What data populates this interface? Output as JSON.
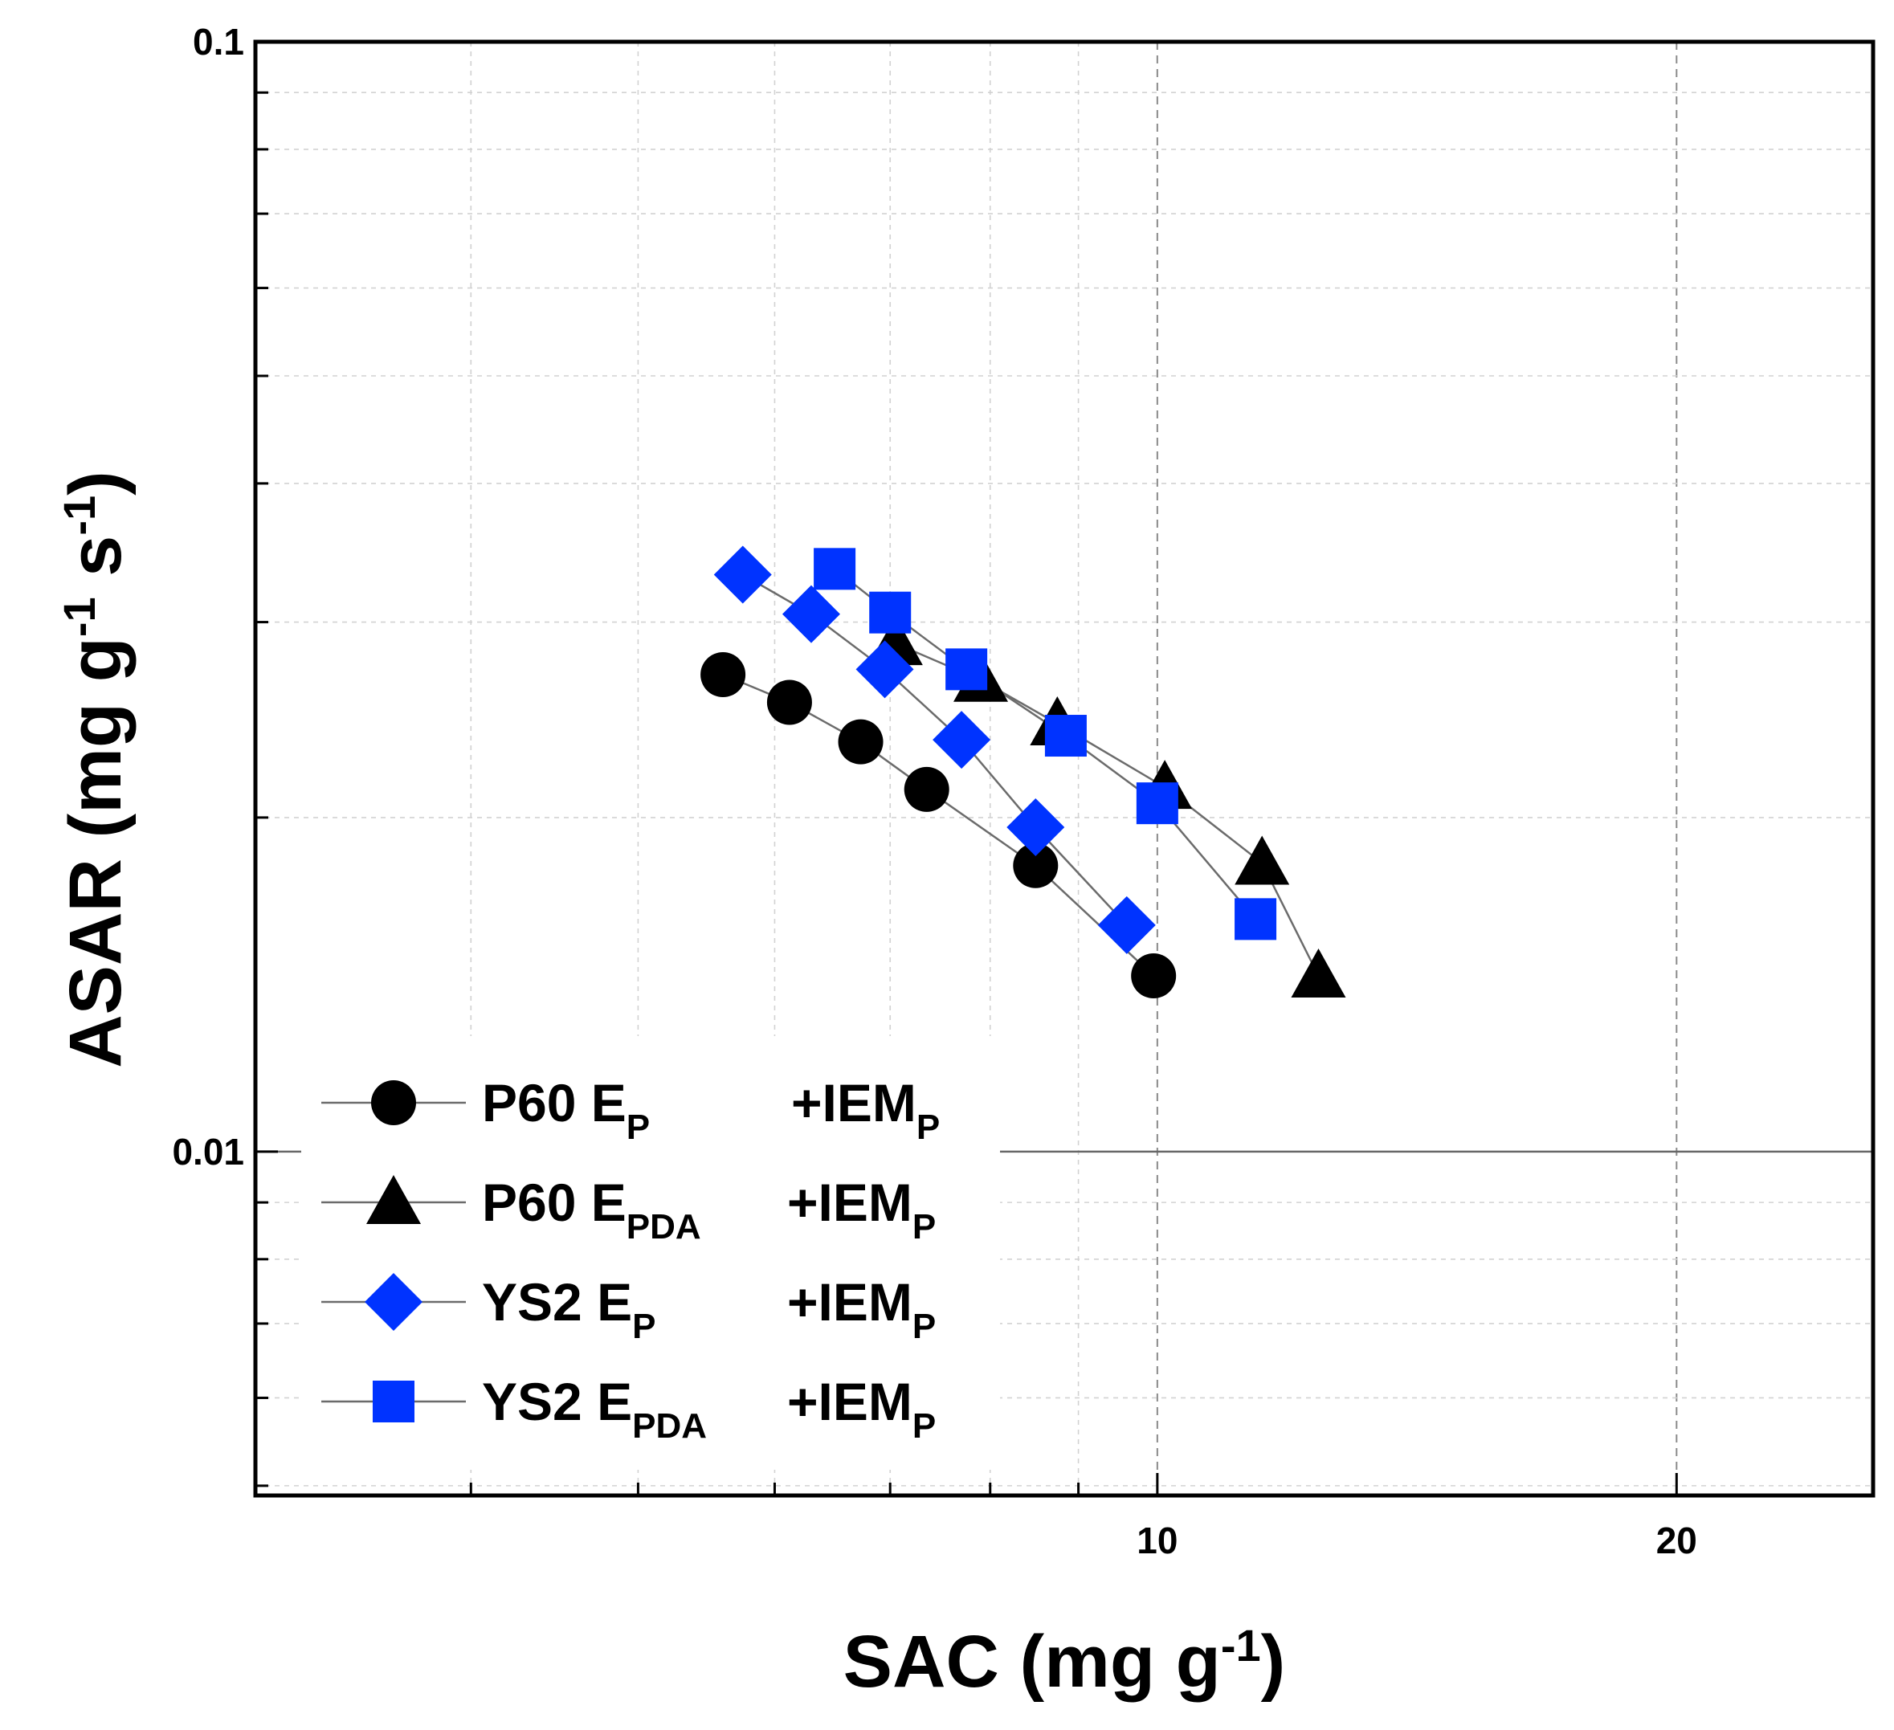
{
  "chart_data": {
    "type": "scatter",
    "xscale": "log",
    "yscale": "log",
    "xlim": [
      3.0,
      26.0
    ],
    "ylim": [
      0.0049,
      0.1
    ],
    "xlabel": {
      "main": "SAC (mg g",
      "sup": "-1",
      "end": ")"
    },
    "ylabel": {
      "a": "ASAR (mg g",
      "sup1": "-1",
      "b": " s",
      "sup2": "-1",
      "c": ")"
    },
    "x_ticks": [
      {
        "value": 10,
        "label": "10"
      },
      {
        "value": 20,
        "label": "20"
      }
    ],
    "y_ticks": [
      {
        "value": 0.01,
        "label": "0.01"
      },
      {
        "value": 0.1,
        "label": "0.1"
      }
    ],
    "reference_line": {
      "y": 0.01
    },
    "grid": true,
    "legend_position": "bottom-left",
    "series": [
      {
        "name": "P60 EP +IEMP",
        "label": {
          "pre": "P60 E",
          "sub1": "P",
          "mid": "+IEM",
          "sub2": "P"
        },
        "marker": "circle",
        "color": "#000000",
        "x": [
          5.6,
          6.12,
          6.73,
          7.35,
          8.5,
          9.95
        ],
        "y": [
          0.0269,
          0.0254,
          0.0234,
          0.0212,
          0.0181,
          0.0144
        ]
      },
      {
        "name": "P60 EPDA +IEMP",
        "label": {
          "pre": "P60 E",
          "sub1": "PDA",
          "mid": "+IEM",
          "sub2": "P"
        },
        "marker": "triangle",
        "color": "#000000",
        "x": [
          7.05,
          7.9,
          8.75,
          10.1,
          11.5,
          12.4
        ],
        "y": [
          0.0287,
          0.0266,
          0.0243,
          0.0213,
          0.0182,
          0.0144
        ]
      },
      {
        "name": "YS2 EP +IEMP",
        "label": {
          "pre": "YS2 E",
          "sub1": "P",
          "mid": "+IEM",
          "sub2": "P"
        },
        "marker": "diamond",
        "color": "#0033FF",
        "x": [
          5.75,
          6.3,
          6.95,
          7.7,
          8.5,
          9.6
        ],
        "y": [
          0.0331,
          0.0305,
          0.0272,
          0.0235,
          0.0196,
          0.016
        ]
      },
      {
        "name": "YS2 EPDA +IEMP",
        "label": {
          "pre": "YS2 E",
          "sub1": "PDA",
          "mid": "+IEM",
          "sub2": "P"
        },
        "marker": "square",
        "color": "#0033FF",
        "x": [
          6.5,
          7.0,
          7.75,
          8.85,
          10.0,
          11.4
        ],
        "y": [
          0.0335,
          0.0306,
          0.0272,
          0.0237,
          0.0206,
          0.0162
        ]
      }
    ]
  }
}
